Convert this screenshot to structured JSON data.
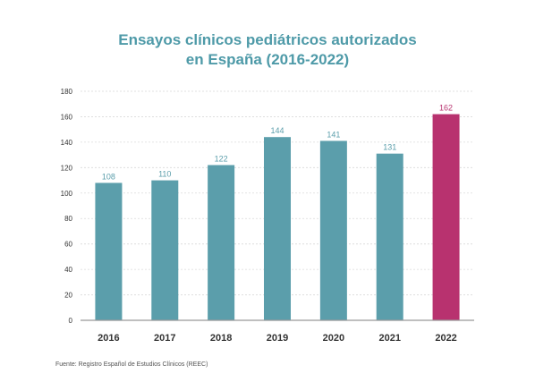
{
  "chart_data": {
    "type": "bar",
    "title_line1": "Ensayos clínicos pediátricos autorizados",
    "title_line2": "en España (2016-2022)",
    "categories": [
      "2016",
      "2017",
      "2018",
      "2019",
      "2020",
      "2021",
      "2022"
    ],
    "values": [
      108,
      110,
      122,
      144,
      141,
      131,
      162
    ],
    "ylim": [
      0,
      180
    ],
    "yticks": [
      0,
      20,
      40,
      60,
      80,
      100,
      120,
      140,
      160,
      180
    ],
    "grid": true,
    "colors": {
      "default": "#5b9eab",
      "highlight": "#b8326f",
      "title": "#4e9aa8"
    },
    "highlight_index": 6,
    "source": "Fuente: Registro Español de Estudios Clínicos (REEC)"
  }
}
